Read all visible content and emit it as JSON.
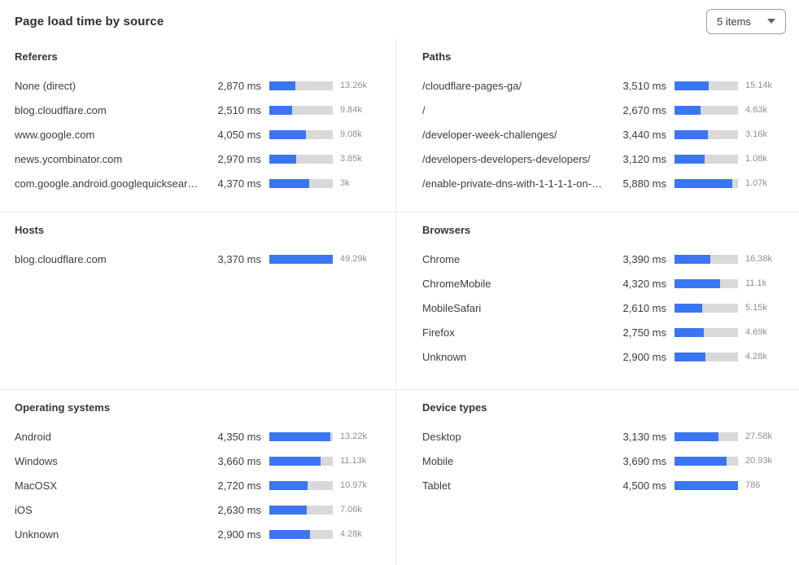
{
  "header": {
    "title": "Page load time by source",
    "items_dropdown": {
      "selected": "5 items"
    }
  },
  "colors": {
    "bar_fill": "#3b76f2",
    "bar_track": "#d9d9d9",
    "divider": "#e9eaeb",
    "count_text": "#8d9096"
  },
  "panels": [
    {
      "id": "referers",
      "title": "Referers",
      "scale_max": 7000,
      "rows": [
        {
          "label": "None (direct)",
          "ms_display": "2,870 ms",
          "ms_value": 2870,
          "count_display": "13.26k"
        },
        {
          "label": "blog.cloudflare.com",
          "ms_display": "2,510 ms",
          "ms_value": 2510,
          "count_display": "9.84k"
        },
        {
          "label": "www.google.com",
          "ms_display": "4,050 ms",
          "ms_value": 4050,
          "count_display": "9.08k"
        },
        {
          "label": "news.ycombinator.com",
          "ms_display": "2,970 ms",
          "ms_value": 2970,
          "count_display": "3.85k"
        },
        {
          "label": "com.google.android.googlequicksearc…",
          "ms_display": "4,370 ms",
          "ms_value": 4370,
          "count_display": "3k"
        }
      ]
    },
    {
      "id": "paths",
      "title": "Paths",
      "scale_max": 6500,
      "rows": [
        {
          "label": "/cloudflare-pages-ga/",
          "ms_display": "3,510 ms",
          "ms_value": 3510,
          "count_display": "15.14k"
        },
        {
          "label": "/",
          "ms_display": "2,670 ms",
          "ms_value": 2670,
          "count_display": "4.63k"
        },
        {
          "label": "/developer-week-challenges/",
          "ms_display": "3,440 ms",
          "ms_value": 3440,
          "count_display": "3.16k"
        },
        {
          "label": "/developers-developers-developers/",
          "ms_display": "3,120 ms",
          "ms_value": 3120,
          "count_display": "1.08k"
        },
        {
          "label": "/enable-private-dns-with-1-1-1-1-on-…",
          "ms_display": "5,880 ms",
          "ms_value": 5880,
          "count_display": "1.07k"
        }
      ]
    },
    {
      "id": "hosts",
      "title": "Hosts",
      "scale_max": 3370,
      "rows": [
        {
          "label": "blog.cloudflare.com",
          "ms_display": "3,370 ms",
          "ms_value": 3370,
          "count_display": "49.29k"
        }
      ]
    },
    {
      "id": "browsers",
      "title": "Browsers",
      "scale_max": 6000,
      "rows": [
        {
          "label": "Chrome",
          "ms_display": "3,390 ms",
          "ms_value": 3390,
          "count_display": "16.38k"
        },
        {
          "label": "ChromeMobile",
          "ms_display": "4,320 ms",
          "ms_value": 4320,
          "count_display": "11.1k"
        },
        {
          "label": "MobileSafari",
          "ms_display": "2,610 ms",
          "ms_value": 2610,
          "count_display": "5.15k"
        },
        {
          "label": "Firefox",
          "ms_display": "2,750 ms",
          "ms_value": 2750,
          "count_display": "4.69k"
        },
        {
          "label": "Unknown",
          "ms_display": "2,900 ms",
          "ms_value": 2900,
          "count_display": "4.28k"
        }
      ]
    },
    {
      "id": "operating-systems",
      "title": "Operating systems",
      "scale_max": 4500,
      "rows": [
        {
          "label": "Android",
          "ms_display": "4,350 ms",
          "ms_value": 4350,
          "count_display": "13.22k"
        },
        {
          "label": "Windows",
          "ms_display": "3,660 ms",
          "ms_value": 3660,
          "count_display": "11.13k"
        },
        {
          "label": "MacOSX",
          "ms_display": "2,720 ms",
          "ms_value": 2720,
          "count_display": "10.97k"
        },
        {
          "label": "iOS",
          "ms_display": "2,630 ms",
          "ms_value": 2630,
          "count_display": "7.06k"
        },
        {
          "label": "Unknown",
          "ms_display": "2,900 ms",
          "ms_value": 2900,
          "count_display": "4.28k"
        }
      ]
    },
    {
      "id": "device-types",
      "title": "Device types",
      "scale_max": 4500,
      "rows": [
        {
          "label": "Desktop",
          "ms_display": "3,130 ms",
          "ms_value": 3130,
          "count_display": "27.58k"
        },
        {
          "label": "Mobile",
          "ms_display": "3,690 ms",
          "ms_value": 3690,
          "count_display": "20.93k"
        },
        {
          "label": "Tablet",
          "ms_display": "4,500 ms",
          "ms_value": 4500,
          "count_display": "786"
        }
      ]
    }
  ]
}
